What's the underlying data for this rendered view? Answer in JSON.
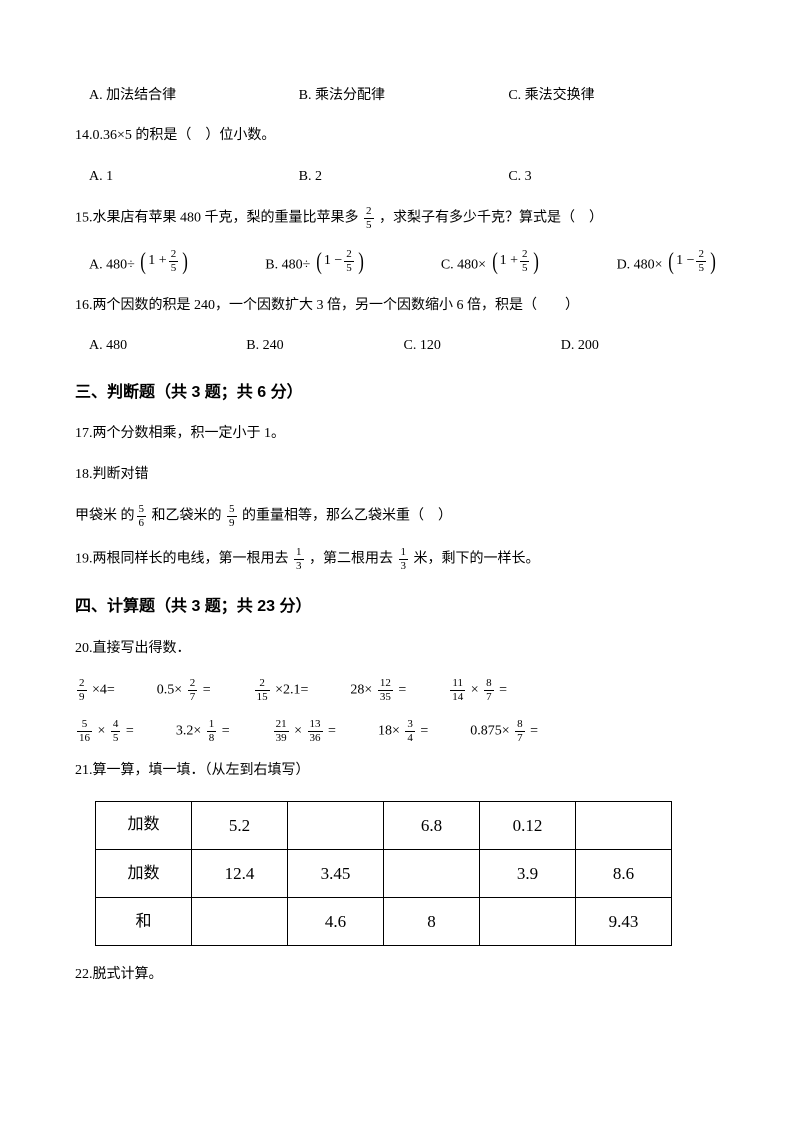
{
  "q13opts": {
    "a": "A. 加法结合律",
    "b": "B. 乘法分配律",
    "c": "C. 乘法交换律"
  },
  "q14": {
    "text": "14.0.36×5 的积是（　）位小数。",
    "a": "A. 1",
    "b": "B. 2",
    "c": "C. 3"
  },
  "q15": {
    "prefix": "15.水果店有苹果 480 千克，梨的重量比苹果多 ",
    "suffix": " ，求梨子有多少千克？算式是（　）",
    "a_pre": "A. 480÷ ",
    "b_pre": "B. 480÷ ",
    "c_pre": "C. 480× ",
    "d_pre": "D. 480× "
  },
  "q16": {
    "text": "16.两个因数的积是 240，一个因数扩大 3 倍，另一个因数缩小 6 倍，积是（　　）",
    "a": "A. 480",
    "b": "B. 240",
    "c": "C. 120",
    "d": "D. 200"
  },
  "section3": "三、判断题（共 3 题；共 6 分）",
  "q17": "17.两个分数相乘，积一定小于 1。",
  "q18": {
    "line1": "18.判断对错",
    "pre": "甲袋米 的",
    "mid": " 和乙袋米的 ",
    "suf": " 的重量相等，那么乙袋米重（　）"
  },
  "q19": {
    "pre": "19.两根同样长的电线，第一根用去 ",
    "mid": " ，第二根用去 ",
    "suf": " 米，剩下的一样长。"
  },
  "section4": "四、计算题（共 3 题；共 23 分）",
  "q20": "20.直接写出得数．",
  "calc": {
    "r1": {
      "c1_pre": "",
      "c1_suf": " ×4=",
      "c2_pre": "0.5× ",
      "c2_suf": " =",
      "c3_pre": "",
      "c3_suf": " ×2.1=",
      "c4_pre": "28× ",
      "c4_suf": " =",
      "c5_mid": " × "
    },
    "r2": {
      "c1_mid": " × ",
      "c2_pre": "3.2× ",
      "c3_mid": " × ",
      "c4_pre": "18× ",
      "c5_pre": "0.875× "
    }
  },
  "q21": "21.算一算，填一填．（从左到右填写）",
  "table": {
    "rows": [
      [
        "加数",
        "5.2",
        "",
        "6.8",
        "0.12",
        ""
      ],
      [
        "加数",
        "12.4",
        "3.45",
        "",
        "3.9",
        "8.6"
      ],
      [
        "和",
        "",
        "4.6",
        "8",
        "",
        "9.43"
      ]
    ]
  },
  "q22": "22.脱式计算。"
}
